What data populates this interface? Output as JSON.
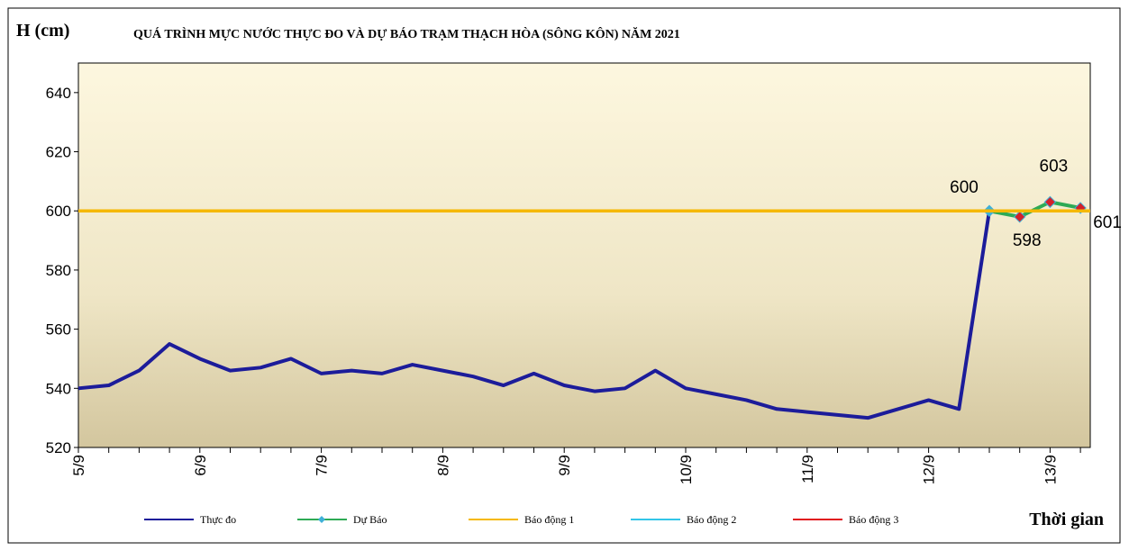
{
  "chart_data": {
    "type": "line",
    "title": "QUÁ TRÌNH MỰC NƯỚC THỰC ĐO VÀ DỰ BÁO TRẠM THẠCH HÒA (SÔNG KÔN) NĂM 2021",
    "y_label": "H (cm)",
    "x_label": "Thời gian",
    "categories": [
      "5/9",
      null,
      null,
      null,
      "6/9",
      null,
      null,
      null,
      "7/9",
      null,
      null,
      null,
      "8/9",
      null,
      null,
      null,
      "9/9",
      null,
      null,
      null,
      "10/9",
      null,
      null,
      null,
      "11/9",
      null,
      null,
      null,
      "12/9",
      null,
      null,
      null,
      "13/9",
      null
    ],
    "series": [
      {
        "name": "Thực đo",
        "color": "#1c1c9a",
        "values": [
          540,
          541,
          546,
          555,
          550,
          546,
          547,
          550,
          545,
          546,
          545,
          548,
          546,
          544,
          541,
          545,
          541,
          539,
          540,
          546,
          540,
          538,
          536,
          533,
          532,
          531,
          530,
          533,
          536,
          533,
          600,
          null,
          null,
          null
        ]
      },
      {
        "name": "Dự Báo",
        "color": "#2eaa55",
        "marker": "diamond",
        "marker_colors": [
          "#3fb0d8",
          "#d4202a",
          "#d4202a",
          "#d4202a"
        ],
        "data_labels": true,
        "values": [
          null,
          null,
          null,
          null,
          null,
          null,
          null,
          null,
          null,
          null,
          null,
          null,
          null,
          null,
          null,
          null,
          null,
          null,
          null,
          null,
          null,
          null,
          null,
          null,
          null,
          null,
          null,
          null,
          null,
          null,
          600,
          598,
          603,
          601
        ]
      },
      {
        "name": "Báo động 1",
        "color": "#f5b800",
        "value": 600
      },
      {
        "name": "Báo động 2",
        "color": "#33c6e8"
      },
      {
        "name": "Báo động 3",
        "color": "#e0141e"
      }
    ],
    "ylim": [
      520,
      650
    ],
    "yticks": [
      520,
      540,
      560,
      580,
      600,
      620,
      640
    ],
    "grid": false,
    "legend": "bottom"
  }
}
